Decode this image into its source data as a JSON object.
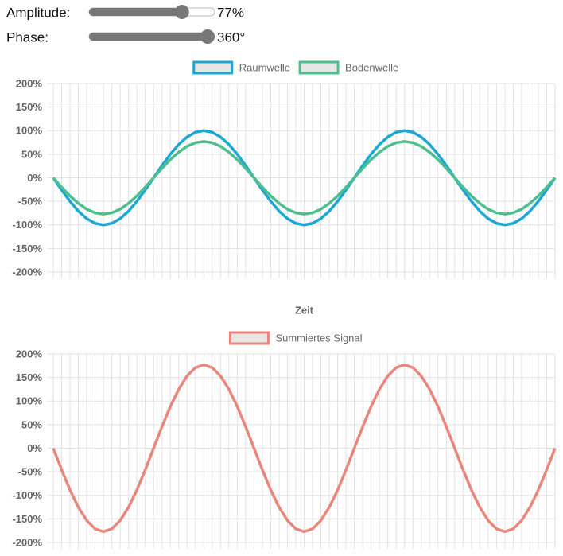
{
  "controls": [
    {
      "label": "Amplitude:",
      "value": 77,
      "value_label": "77%",
      "min": 0,
      "max": 100
    },
    {
      "label": "Phase:",
      "value": 360,
      "value_label": "360°",
      "min": 0,
      "max": 360
    }
  ],
  "chart_data": [
    {
      "type": "line",
      "xlabel": "Zeit",
      "categories": [
        null,
        null,
        null,
        null,
        null,
        null,
        null,
        null,
        null,
        null,
        null,
        null,
        null,
        null,
        null,
        null,
        null,
        null,
        null,
        null,
        null,
        null,
        null,
        null,
        null,
        null,
        null,
        null,
        null,
        null,
        null,
        null,
        null,
        null,
        null,
        null,
        null,
        null,
        null,
        null,
        null,
        null,
        null,
        null,
        null,
        null,
        null,
        null,
        null,
        null,
        null,
        null,
        null,
        null,
        null,
        null,
        null,
        null,
        null,
        null,
        null
      ],
      "series": [
        {
          "name": "Raumwelle",
          "color": "#1ea7d4",
          "values": [
            0,
            -25.9,
            -50,
            -70.7,
            -86.6,
            -96.6,
            -100,
            -96.6,
            -86.6,
            -70.7,
            -50,
            -25.9,
            0,
            25.9,
            50,
            70.7,
            86.6,
            96.6,
            100,
            96.6,
            86.6,
            70.7,
            50,
            25.9,
            0,
            -25.9,
            -50,
            -70.7,
            -86.6,
            -96.6,
            -100,
            -96.6,
            -86.6,
            -70.7,
            -50,
            -25.9,
            0,
            25.9,
            50,
            70.7,
            86.6,
            96.6,
            100,
            96.6,
            86.6,
            70.7,
            50,
            25.9,
            0,
            -25.9,
            -50,
            -70.7,
            -86.6,
            -96.6,
            -100,
            -96.6,
            -86.6,
            -70.7,
            -50,
            -25.9,
            0
          ]
        },
        {
          "name": "Bodenwelle",
          "color": "#4dbf8e",
          "values": [
            0,
            -19.9,
            -38.5,
            -54.4,
            -66.7,
            -74.4,
            -77,
            -74.4,
            -66.7,
            -54.4,
            -38.5,
            -19.9,
            0,
            19.9,
            38.5,
            54.4,
            66.7,
            74.4,
            77,
            74.4,
            66.7,
            54.4,
            38.5,
            19.9,
            0,
            -19.9,
            -38.5,
            -54.4,
            -66.7,
            -74.4,
            -77,
            -74.4,
            -66.7,
            -54.4,
            -38.5,
            -19.9,
            0,
            19.9,
            38.5,
            54.4,
            66.7,
            74.4,
            77,
            74.4,
            66.7,
            54.4,
            38.5,
            19.9,
            0,
            -19.9,
            -38.5,
            -54.4,
            -66.7,
            -74.4,
            -77,
            -74.4,
            -66.7,
            -54.4,
            -38.5,
            -19.9,
            0
          ]
        }
      ],
      "ylim": [
        -200,
        200
      ],
      "yticks": [
        {
          "value": -200,
          "label": "-200%"
        },
        {
          "value": -150,
          "label": "-150%"
        },
        {
          "value": -100,
          "label": "-100%"
        },
        {
          "value": -50,
          "label": "-50%"
        },
        {
          "value": 0,
          "label": "0%"
        },
        {
          "value": 50,
          "label": "50%"
        },
        {
          "value": 100,
          "label": "100%"
        },
        {
          "value": 150,
          "label": "150%"
        },
        {
          "value": 200,
          "label": "200%"
        }
      ],
      "grid": true,
      "legend": "top"
    },
    {
      "type": "line",
      "categories": [
        null,
        null,
        null,
        null,
        null,
        null,
        null,
        null,
        null,
        null,
        null,
        null,
        null,
        null,
        null,
        null,
        null,
        null,
        null,
        null,
        null,
        null,
        null,
        null,
        null,
        null,
        null,
        null,
        null,
        null,
        null,
        null,
        null,
        null,
        null,
        null,
        null,
        null,
        null,
        null,
        null,
        null,
        null,
        null,
        null,
        null,
        null,
        null,
        null,
        null,
        null,
        null,
        null,
        null,
        null,
        null,
        null,
        null,
        null,
        null,
        null
      ],
      "series": [
        {
          "name": "Summiertes Signal",
          "color": "#e8877c",
          "values": [
            0,
            -45.8,
            -88.5,
            -125.2,
            -153.3,
            -171,
            -177,
            -171,
            -153.3,
            -125.2,
            -88.5,
            -45.8,
            0,
            45.8,
            88.5,
            125.2,
            153.3,
            171,
            177,
            171,
            153.3,
            125.2,
            88.5,
            45.8,
            0,
            -45.8,
            -88.5,
            -125.2,
            -153.3,
            -171,
            -177,
            -171,
            -153.3,
            -125.2,
            -88.5,
            -45.8,
            0,
            45.8,
            88.5,
            125.2,
            153.3,
            171,
            177,
            171,
            153.3,
            125.2,
            88.5,
            45.8,
            0,
            -45.8,
            -88.5,
            -125.2,
            -153.3,
            -171,
            -177,
            -171,
            -153.3,
            -125.2,
            -88.5,
            -45.8,
            0
          ]
        }
      ],
      "ylim": [
        -200,
        200
      ],
      "yticks": [
        {
          "value": -200,
          "label": "-200%"
        },
        {
          "value": -150,
          "label": "-150%"
        },
        {
          "value": -100,
          "label": "-100%"
        },
        {
          "value": -50,
          "label": "-50%"
        },
        {
          "value": 0,
          "label": "0%"
        },
        {
          "value": 50,
          "label": "50%"
        },
        {
          "value": 100,
          "label": "100%"
        },
        {
          "value": 150,
          "label": "150%"
        },
        {
          "value": 200,
          "label": "200%"
        }
      ],
      "grid": true,
      "legend": "top"
    }
  ]
}
